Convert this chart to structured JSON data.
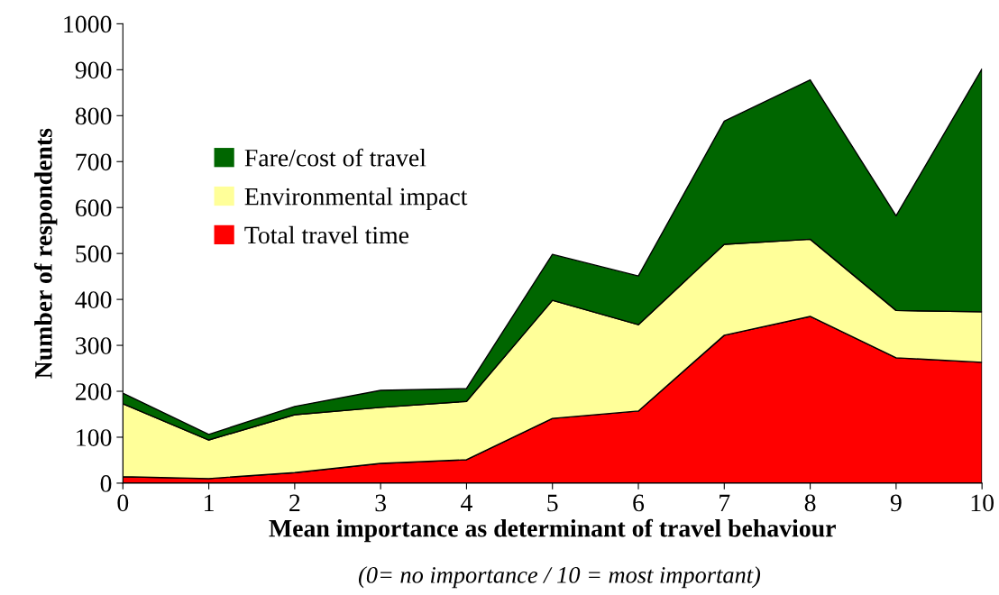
{
  "chart_data": {
    "type": "area",
    "stacked": true,
    "xlabel": "Mean importance as determinant of travel behaviour",
    "ylabel": "Number of respondents",
    "annotations": [
      "(0= no importance / 10 = most important)"
    ],
    "x": [
      0,
      1,
      2,
      3,
      4,
      5,
      6,
      7,
      8,
      9,
      10
    ],
    "xlim": [
      0,
      10
    ],
    "xticks": [
      0,
      1,
      2,
      3,
      4,
      5,
      6,
      7,
      8,
      9,
      10
    ],
    "ylim": [
      0,
      1000
    ],
    "yticks": [
      0,
      100,
      200,
      300,
      400,
      500,
      600,
      700,
      800,
      900,
      1000
    ],
    "grid": false,
    "legend": "left",
    "series": [
      {
        "name": "Total travel time",
        "color": "#ff0000",
        "values": [
          14,
          10,
          23,
          43,
          51,
          141,
          157,
          322,
          363,
          273,
          263
        ]
      },
      {
        "name": "Environmental impact",
        "color": "#ffff99",
        "values": [
          159,
          84,
          126,
          122,
          127,
          257,
          188,
          198,
          168,
          103,
          110
        ]
      },
      {
        "name": "Fare/cost of travel",
        "color": "#006600",
        "values": [
          23,
          12,
          18,
          37,
          28,
          100,
          106,
          268,
          347,
          206,
          529
        ]
      }
    ]
  }
}
